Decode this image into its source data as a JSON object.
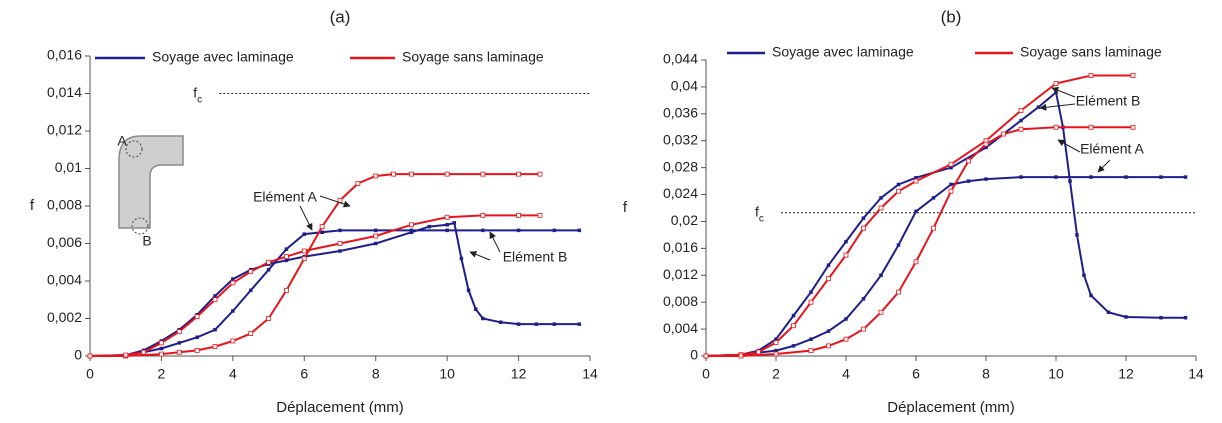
{
  "chart_data": [
    {
      "type": "line",
      "title": "(a)",
      "x_label": "Déplacement (mm)",
      "y_label": "f",
      "xlim": [
        0,
        14
      ],
      "xticks": [
        0,
        2,
        4,
        6,
        8,
        10,
        12,
        14
      ],
      "ylim": [
        0,
        0.016
      ],
      "yticks": [
        0,
        {
          "value": 0.002,
          "label": "0,002"
        },
        {
          "value": 0.004,
          "label": "0,004"
        },
        {
          "value": 0.006,
          "label": "0,006"
        },
        {
          "value": 0.008,
          "label": "0,008"
        },
        {
          "value": 0.01,
          "label": "0,01"
        },
        {
          "value": 0.012,
          "label": "0,012"
        },
        {
          "value": 0.014,
          "label": "0,014"
        },
        {
          "value": 0.016,
          "label": "0,016"
        }
      ],
      "threshold": 0.014,
      "threshold_label": {
        "base": "f",
        "sub": "c"
      },
      "inset_labels": [
        "A",
        "B"
      ],
      "annotations": [
        "Elément A",
        "Elément B"
      ],
      "series": [
        {
          "name": "Soyage avec laminage",
          "color": "#1f1f8c",
          "lines": [
            {
              "x": [
                0,
                1,
                1.5,
                2,
                2.5,
                3,
                3.5,
                4,
                4.5,
                5,
                5.5,
                6,
                6.5,
                7,
                8,
                9,
                10,
                11,
                12,
                13,
                13.7
              ],
              "values": [
                0,
                5e-05,
                0.0002,
                0.0004,
                0.0007,
                0.001,
                0.0014,
                0.0024,
                0.0035,
                0.0046,
                0.0057,
                0.0065,
                0.0066,
                0.0067,
                0.0067,
                0.0067,
                0.0067,
                0.0067,
                0.0067,
                0.0067,
                0.0067
              ]
            },
            {
              "x": [
                0,
                1,
                1.5,
                2,
                2.5,
                3,
                3.5,
                4,
                4.5,
                5,
                5.5,
                6,
                7,
                8,
                9,
                9.5,
                10,
                10.2,
                10.4,
                10.6,
                10.8,
                11,
                11.5,
                12,
                12.5,
                13,
                13.7
              ],
              "values": [
                0,
                5e-05,
                0.0003,
                0.0008,
                0.0014,
                0.0022,
                0.0032,
                0.0041,
                0.0046,
                0.0049,
                0.0051,
                0.0053,
                0.0056,
                0.006,
                0.0066,
                0.0069,
                0.007,
                0.0071,
                0.0052,
                0.0035,
                0.0025,
                0.002,
                0.0018,
                0.0017,
                0.0017,
                0.0017,
                0.0017
              ]
            }
          ]
        },
        {
          "name": "Soyage sans laminage",
          "color": "#e8141b",
          "lines": [
            {
              "x": [
                0,
                1,
                2,
                2.5,
                3,
                3.5,
                4,
                4.5,
                5,
                5.5,
                6,
                6.5,
                7,
                7.5,
                8,
                8.5,
                9,
                10,
                11,
                12,
                12.6
              ],
              "values": [
                0,
                0,
                0.0001,
                0.0002,
                0.0003,
                0.0005,
                0.0008,
                0.0012,
                0.002,
                0.0035,
                0.0052,
                0.0069,
                0.0083,
                0.0092,
                0.0096,
                0.0097,
                0.0097,
                0.0097,
                0.0097,
                0.0097,
                0.0097
              ]
            },
            {
              "x": [
                0,
                1,
                1.5,
                2,
                2.5,
                3,
                3.5,
                4,
                4.5,
                5,
                5.5,
                6,
                7,
                8,
                9,
                10,
                11,
                12,
                12.6
              ],
              "values": [
                0,
                5e-05,
                0.0002,
                0.0007,
                0.0013,
                0.0021,
                0.003,
                0.0039,
                0.0045,
                0.005,
                0.0053,
                0.0056,
                0.006,
                0.0064,
                0.007,
                0.0074,
                0.0075,
                0.0075,
                0.0075
              ]
            }
          ]
        }
      ]
    },
    {
      "type": "line",
      "title": "(b)",
      "x_label": "Déplacement (mm)",
      "y_label": "f",
      "xlim": [
        0,
        14
      ],
      "xticks": [
        0,
        2,
        4,
        6,
        8,
        10,
        12,
        14
      ],
      "ylim": [
        0,
        0.044
      ],
      "yticks": [
        0,
        {
          "value": 0.004,
          "label": "0,004"
        },
        {
          "value": 0.008,
          "label": "0,008"
        },
        {
          "value": 0.012,
          "label": "0,012"
        },
        {
          "value": 0.016,
          "label": "0,016"
        },
        {
          "value": 0.02,
          "label": "0,02"
        },
        {
          "value": 0.024,
          "label": "0,024"
        },
        {
          "value": 0.028,
          "label": "0,028"
        },
        {
          "value": 0.032,
          "label": "0,032"
        },
        {
          "value": 0.036,
          "label": "0,036"
        },
        {
          "value": 0.04,
          "label": "0,04"
        },
        {
          "value": 0.044,
          "label": "0,044"
        }
      ],
      "threshold": 0.0213,
      "threshold_label": {
        "base": "f",
        "sub": "c"
      },
      "annotations": [
        "Elément B",
        "Elément A"
      ],
      "series": [
        {
          "name": "Soyage avec laminage",
          "color": "#1f1f8c",
          "lines": [
            {
              "x": [
                0,
                1,
                1.5,
                2,
                2.5,
                3,
                3.5,
                4,
                4.5,
                5,
                5.5,
                6,
                7,
                8,
                9,
                9.5,
                10,
                10.2,
                10.4,
                10.6,
                10.8,
                11,
                11.5,
                12,
                13,
                13.7
              ],
              "values": [
                0,
                0.0002,
                0.0008,
                0.0025,
                0.006,
                0.0095,
                0.0135,
                0.017,
                0.0205,
                0.0235,
                0.0255,
                0.0265,
                0.028,
                0.031,
                0.035,
                0.037,
                0.0392,
                0.034,
                0.026,
                0.018,
                0.012,
                0.009,
                0.0065,
                0.0058,
                0.0057,
                0.0057
              ]
            },
            {
              "x": [
                0,
                1,
                2,
                2.5,
                3,
                3.5,
                4,
                4.5,
                5,
                5.5,
                6,
                6.5,
                7,
                7.5,
                8,
                9,
                10,
                11,
                12,
                13,
                13.7
              ],
              "values": [
                0,
                0.0002,
                0.0008,
                0.0015,
                0.0025,
                0.0037,
                0.0055,
                0.0085,
                0.012,
                0.0165,
                0.0215,
                0.0235,
                0.0255,
                0.026,
                0.0263,
                0.0266,
                0.0266,
                0.0266,
                0.0266,
                0.0266,
                0.0266
              ]
            }
          ]
        },
        {
          "name": "Soyage sans laminage",
          "color": "#e8141b",
          "lines": [
            {
              "x": [
                0,
                1,
                1.5,
                2,
                2.5,
                3,
                3.5,
                4,
                4.5,
                5,
                5.5,
                6,
                7,
                8,
                9,
                10,
                11,
                12.2
              ],
              "values": [
                0,
                0.0002,
                0.0006,
                0.002,
                0.0045,
                0.008,
                0.0115,
                0.015,
                0.019,
                0.022,
                0.0245,
                0.026,
                0.0285,
                0.032,
                0.0365,
                0.0405,
                0.0417,
                0.0417
              ]
            },
            {
              "x": [
                0,
                1,
                2,
                3,
                3.5,
                4,
                4.5,
                5,
                5.5,
                6,
                6.5,
                7,
                7.5,
                8,
                8.5,
                9,
                10,
                11,
                12.2
              ],
              "values": [
                0,
                0,
                0.0003,
                0.0008,
                0.0015,
                0.0025,
                0.004,
                0.0065,
                0.0095,
                0.014,
                0.019,
                0.0245,
                0.029,
                0.0315,
                0.033,
                0.0337,
                0.034,
                0.034,
                0.034
              ]
            }
          ]
        }
      ]
    }
  ]
}
